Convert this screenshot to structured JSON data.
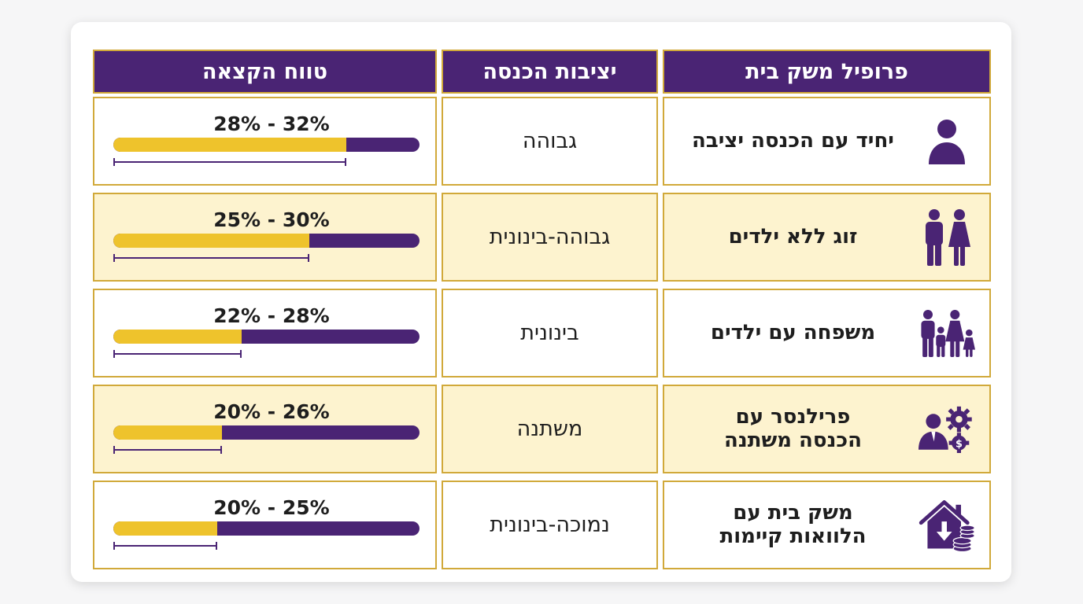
{
  "headers": {
    "profile": "פרופיל משק בית",
    "stability": "יציבות הכנסה",
    "range": "טווח הקצאה"
  },
  "colors": {
    "header_bg": "#4a2474",
    "bar_fill": "#eec32c",
    "bar_track": "#4a2474",
    "border": "#d1a93a",
    "row_alt_bg": "#fdf3cf"
  },
  "rows": [
    {
      "profile_icon": "person-icon",
      "profile_lines": [
        "יחיד עם הכנסה יציבה"
      ],
      "stability": "גבוהה",
      "range": "28% - 32%",
      "bar_fill_fraction": 0.76
    },
    {
      "profile_icon": "couple-icon",
      "profile_lines": [
        "זוג ללא ילדים"
      ],
      "stability": "גבוהה-בינונית",
      "range": "25% - 30%",
      "bar_fill_fraction": 0.64
    },
    {
      "profile_icon": "family-icon",
      "profile_lines": [
        "משפחה עם ילדים"
      ],
      "stability": "בינונית",
      "range": "22% - 28%",
      "bar_fill_fraction": 0.42
    },
    {
      "profile_icon": "freelancer-gears-dollar-icon",
      "profile_lines": [
        "פרילנסר עם",
        "הכנסה משתנה"
      ],
      "stability": "משתנה",
      "range": "20% - 26%",
      "bar_fill_fraction": 0.355
    },
    {
      "profile_icon": "house-loans-coins-icon",
      "profile_lines": [
        "משק בית עם",
        "הלוואות קיימות"
      ],
      "stability": "נמוכה-בינונית",
      "range": "20% - 25%",
      "bar_fill_fraction": 0.34
    }
  ]
}
